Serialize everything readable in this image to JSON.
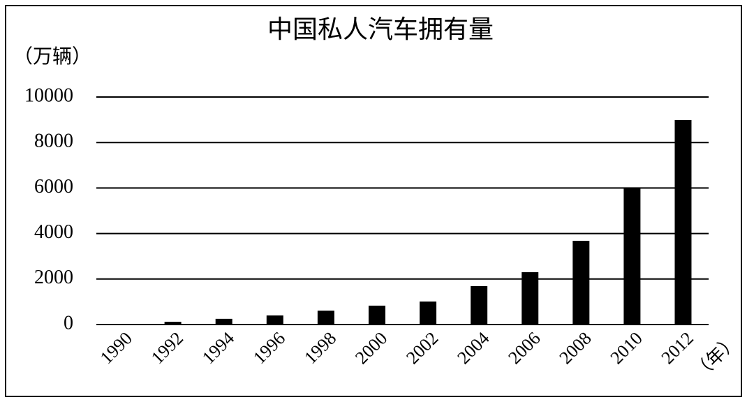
{
  "chart_data": {
    "type": "bar",
    "title": "中国私人汽车拥有量",
    "y_label": "（万辆）",
    "x_label": "（年）",
    "categories": [
      "1990",
      "1992",
      "1994",
      "1996",
      "1998",
      "2000",
      "2002",
      "2004",
      "2006",
      "2008",
      "2010",
      "2012"
    ],
    "values": [
      0,
      120,
      250,
      400,
      610,
      830,
      1010,
      1690,
      2300,
      3680,
      6010,
      8990
    ],
    "color": "#000000",
    "ylim": [
      0,
      10000
    ],
    "yticks": [
      0,
      2000,
      4000,
      6000,
      8000,
      10000
    ],
    "grid": true
  }
}
